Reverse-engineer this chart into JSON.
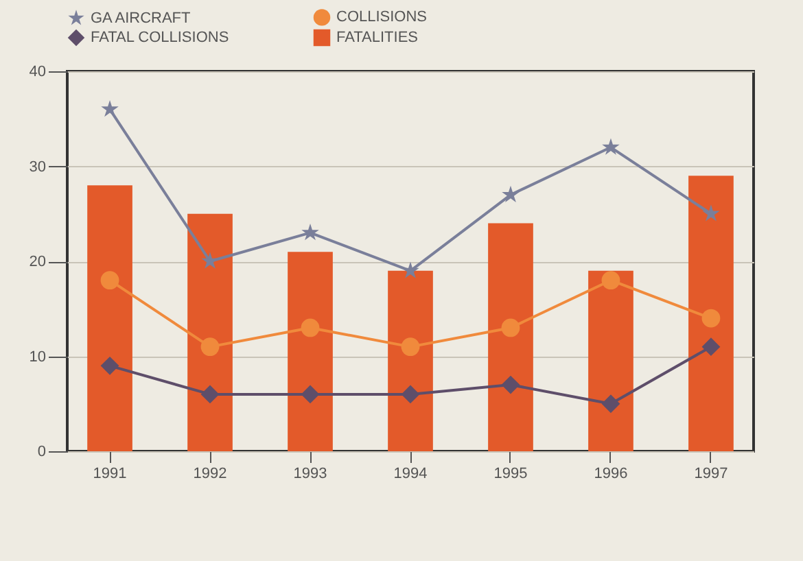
{
  "chart_data": {
    "type": "bar",
    "categories": [
      "1991",
      "1992",
      "1993",
      "1994",
      "1995",
      "1996",
      "1997"
    ],
    "series": [
      {
        "name": "GA AIRCRAFT",
        "type": "line",
        "marker": "star",
        "color": "#7a7f9a",
        "values": [
          36,
          20,
          23,
          19,
          27,
          32,
          25
        ]
      },
      {
        "name": "COLLISIONS",
        "type": "line",
        "marker": "circle",
        "color": "#f08a3c",
        "values": [
          18,
          11,
          13,
          11,
          13,
          18,
          14
        ]
      },
      {
        "name": "FATAL COLLISIONS",
        "type": "line",
        "marker": "diamond",
        "color": "#5e4e6a",
        "values": [
          9,
          6,
          6,
          6,
          7,
          5,
          11
        ]
      },
      {
        "name": "FATALITIES",
        "color": "#e35a2a",
        "values": [
          28,
          25,
          21,
          19,
          24,
          19,
          29
        ]
      }
    ],
    "ylim": [
      0,
      40
    ],
    "yticks": [
      0,
      10,
      20,
      30,
      40
    ],
    "grid": "y",
    "legend": "top"
  }
}
